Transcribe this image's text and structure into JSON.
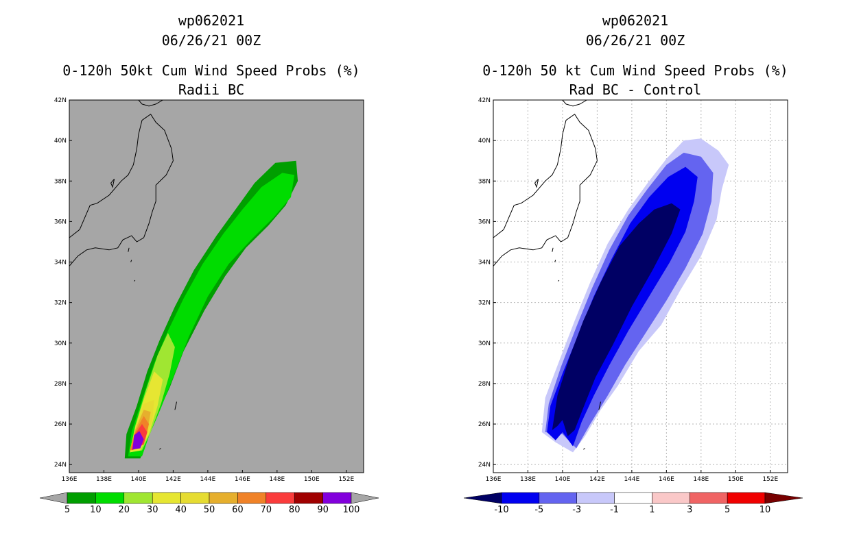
{
  "chart_data": [
    {
      "type": "contour-map",
      "title": "wp062021",
      "subtitle": "06/26/21 00Z",
      "variable": "0-120h 50kt Cum Wind Speed Probs (%)",
      "panel_label": "Radii BC",
      "background_color": "#a6a6a6",
      "lon_ticks": [
        "136E",
        "138E",
        "140E",
        "142E",
        "144E",
        "146E",
        "148E",
        "150E",
        "152E"
      ],
      "lat_ticks": [
        "42N",
        "40N",
        "38N",
        "36N",
        "34N",
        "32N",
        "30N",
        "28N",
        "26N",
        "24N"
      ],
      "lon_range": [
        136,
        153
      ],
      "lat_range": [
        23.6,
        42
      ],
      "levels": [
        "5",
        "10",
        "20",
        "30",
        "40",
        "50",
        "60",
        "70",
        "80",
        "90",
        "100"
      ],
      "level_colors": [
        "#009e00",
        "#00dc00",
        "#a0e632",
        "#e6e632",
        "#e6dc32",
        "#e6af2d",
        "#f08228",
        "#fa3c3c",
        "#a00000",
        "#8200dc"
      ],
      "contours": [
        {
          "level": 5,
          "color": "#009e00",
          "path": [
            [
              139.2,
              24.3
            ],
            [
              139.3,
              25.5
            ],
            [
              139.9,
              26.9
            ],
            [
              140.5,
              28.6
            ],
            [
              141.2,
              30.1
            ],
            [
              142.1,
              31.8
            ],
            [
              143.2,
              33.6
            ],
            [
              144.5,
              35.3
            ],
            [
              145.6,
              36.6
            ],
            [
              146.7,
              37.9
            ],
            [
              147.9,
              38.9
            ],
            [
              149.1,
              39.0
            ],
            [
              149.2,
              38.0
            ],
            [
              148.5,
              36.8
            ],
            [
              147.5,
              35.8
            ],
            [
              146.2,
              34.7
            ],
            [
              145.0,
              33.3
            ],
            [
              143.8,
              31.6
            ],
            [
              142.6,
              29.6
            ],
            [
              141.8,
              27.8
            ],
            [
              141.1,
              26.5
            ],
            [
              140.5,
              25.3
            ],
            [
              140.1,
              24.3
            ]
          ]
        },
        {
          "level": 10,
          "color": "#00dc00",
          "path": [
            [
              139.4,
              24.4
            ],
            [
              139.6,
              25.6
            ],
            [
              140.2,
              27.2
            ],
            [
              140.9,
              29.0
            ],
            [
              141.7,
              30.6
            ],
            [
              142.6,
              32.2
            ],
            [
              143.7,
              33.9
            ],
            [
              144.9,
              35.4
            ],
            [
              146.0,
              36.6
            ],
            [
              147.1,
              37.7
            ],
            [
              148.3,
              38.4
            ],
            [
              149.0,
              38.3
            ],
            [
              148.8,
              37.2
            ],
            [
              147.8,
              36.2
            ],
            [
              146.5,
              35.1
            ],
            [
              145.2,
              33.9
            ],
            [
              144.0,
              32.3
            ],
            [
              142.9,
              30.3
            ],
            [
              142.0,
              28.3
            ],
            [
              141.3,
              26.8
            ],
            [
              140.6,
              25.4
            ],
            [
              140.2,
              24.4
            ]
          ]
        },
        {
          "level": 20,
          "color": "#a0e632",
          "path": [
            [
              139.5,
              24.6
            ],
            [
              139.8,
              25.9
            ],
            [
              140.4,
              27.6
            ],
            [
              141.1,
              29.4
            ],
            [
              141.7,
              30.5
            ],
            [
              142.1,
              29.8
            ],
            [
              141.8,
              28.5
            ],
            [
              141.3,
              27.0
            ],
            [
              140.7,
              25.6
            ],
            [
              140.2,
              24.7
            ]
          ]
        },
        {
          "level": 30,
          "color": "#e6e632",
          "path": [
            [
              139.5,
              24.6
            ],
            [
              139.8,
              25.8
            ],
            [
              140.3,
              27.2
            ],
            [
              140.9,
              28.6
            ],
            [
              141.4,
              28.2
            ],
            [
              141.1,
              26.9
            ],
            [
              140.6,
              25.5
            ],
            [
              140.1,
              24.7
            ]
          ]
        },
        {
          "level": 40,
          "color": "#e6dc32",
          "path": [
            [
              139.5,
              24.7
            ],
            [
              139.8,
              25.8
            ],
            [
              140.3,
              27.0
            ],
            [
              140.9,
              27.2
            ],
            [
              140.8,
              26.2
            ],
            [
              140.4,
              25.3
            ],
            [
              140.0,
              24.8
            ]
          ]
        },
        {
          "level": 50,
          "color": "#e6af2d",
          "path": [
            [
              139.5,
              24.7
            ],
            [
              139.8,
              25.7
            ],
            [
              140.3,
              26.7
            ],
            [
              140.7,
              26.6
            ],
            [
              140.5,
              25.6
            ],
            [
              140.1,
              24.9
            ]
          ]
        },
        {
          "level": 60,
          "color": "#f08228",
          "path": [
            [
              139.5,
              24.7
            ],
            [
              139.8,
              25.6
            ],
            [
              140.3,
              26.4
            ],
            [
              140.6,
              26.0
            ],
            [
              140.4,
              25.3
            ],
            [
              140.0,
              24.8
            ]
          ]
        },
        {
          "level": 70,
          "color": "#fa3c3c",
          "path": [
            [
              139.6,
              24.7
            ],
            [
              139.8,
              25.5
            ],
            [
              140.2,
              26.0
            ],
            [
              140.5,
              25.6
            ],
            [
              140.3,
              25.0
            ],
            [
              139.9,
              24.8
            ]
          ]
        },
        {
          "level": 90,
          "color": "#8200dc",
          "path": [
            [
              139.65,
              24.75
            ],
            [
              139.75,
              25.45
            ],
            [
              140.05,
              25.65
            ],
            [
              140.3,
              25.25
            ],
            [
              140.1,
              24.8
            ]
          ]
        }
      ]
    },
    {
      "type": "contour-map",
      "title": "wp062021",
      "subtitle": "06/26/21 00Z",
      "variable": "0-120h 50 kt Cum Wind Speed Probs (%)",
      "panel_label": "Rad BC - Control",
      "background_color": "#ffffff",
      "lon_ticks": [
        "136E",
        "138E",
        "140E",
        "142E",
        "144E",
        "146E",
        "148E",
        "150E",
        "152E"
      ],
      "lat_ticks": [
        "42N",
        "40N",
        "38N",
        "36N",
        "34N",
        "32N",
        "30N",
        "28N",
        "26N",
        "24N"
      ],
      "lon_range": [
        136,
        153
      ],
      "lat_range": [
        23.6,
        42
      ],
      "levels": [
        "-10",
        "-5",
        "-3",
        "-1",
        "1",
        "3",
        "5",
        "10"
      ],
      "level_colors": [
        "#000064",
        "#0000f0",
        "#6464f0",
        "#c8c8fa",
        "#ffffff",
        "#fac8c8",
        "#f06464",
        "#f00000",
        "#780000"
      ],
      "contours": [
        {
          "level": -1,
          "color": "#c8c8fa",
          "path": [
            [
              138.8,
              25.6
            ],
            [
              139.0,
              27.3
            ],
            [
              139.8,
              29.1
            ],
            [
              140.7,
              31.1
            ],
            [
              141.6,
              33.0
            ],
            [
              142.6,
              34.9
            ],
            [
              143.8,
              36.6
            ],
            [
              145.0,
              38.0
            ],
            [
              146.0,
              39.1
            ],
            [
              147.0,
              40.0
            ],
            [
              148.0,
              40.1
            ],
            [
              149.0,
              39.5
            ],
            [
              149.6,
              38.8
            ],
            [
              149.2,
              37.6
            ],
            [
              148.9,
              36.1
            ],
            [
              148.0,
              34.3
            ],
            [
              146.8,
              32.6
            ],
            [
              145.7,
              30.9
            ],
            [
              144.4,
              29.6
            ],
            [
              143.2,
              27.9
            ],
            [
              142.2,
              26.7
            ],
            [
              141.3,
              25.4
            ],
            [
              140.6,
              24.6
            ],
            [
              139.6,
              25.1
            ]
          ]
        },
        {
          "level": -3,
          "color": "#6464f0",
          "path": [
            [
              139.0,
              25.6
            ],
            [
              139.2,
              27.0
            ],
            [
              139.9,
              28.8
            ],
            [
              140.8,
              30.8
            ],
            [
              141.7,
              32.7
            ],
            [
              142.7,
              34.6
            ],
            [
              143.8,
              36.3
            ],
            [
              144.9,
              37.6
            ],
            [
              146.0,
              38.8
            ],
            [
              147.0,
              39.4
            ],
            [
              148.0,
              39.2
            ],
            [
              148.7,
              38.4
            ],
            [
              148.6,
              37.0
            ],
            [
              148.1,
              35.4
            ],
            [
              147.1,
              33.7
            ],
            [
              146.0,
              32.1
            ],
            [
              144.8,
              30.5
            ],
            [
              143.6,
              28.9
            ],
            [
              142.6,
              27.4
            ],
            [
              141.6,
              26.0
            ],
            [
              140.8,
              24.8
            ],
            [
              140.0,
              25.5
            ]
          ]
        },
        {
          "level": -5,
          "color": "#0000f0",
          "path": [
            [
              139.1,
              25.6
            ],
            [
              139.3,
              26.9
            ],
            [
              140.0,
              28.5
            ],
            [
              140.9,
              30.4
            ],
            [
              141.8,
              32.3
            ],
            [
              142.8,
              34.1
            ],
            [
              143.9,
              35.9
            ],
            [
              145.0,
              37.2
            ],
            [
              146.1,
              38.2
            ],
            [
              147.1,
              38.7
            ],
            [
              147.8,
              38.2
            ],
            [
              147.6,
              37.0
            ],
            [
              147.1,
              35.5
            ],
            [
              146.2,
              34.0
            ],
            [
              145.0,
              32.3
            ],
            [
              143.8,
              30.6
            ],
            [
              142.7,
              28.9
            ],
            [
              141.8,
              27.4
            ],
            [
              141.1,
              26.1
            ],
            [
              140.6,
              24.9
            ],
            [
              140.0,
              25.6
            ],
            [
              139.6,
              25.2
            ]
          ]
        },
        {
          "level": -10,
          "color": "#000064",
          "path": [
            [
              139.4,
              25.7
            ],
            [
              139.7,
              27.4
            ],
            [
              140.4,
              29.3
            ],
            [
              141.2,
              31.1
            ],
            [
              142.2,
              33.0
            ],
            [
              143.3,
              34.8
            ],
            [
              144.4,
              35.9
            ],
            [
              145.3,
              36.6
            ],
            [
              146.3,
              36.9
            ],
            [
              146.8,
              36.6
            ],
            [
              146.3,
              35.4
            ],
            [
              145.2,
              33.6
            ],
            [
              144.0,
              31.8
            ],
            [
              142.9,
              29.9
            ],
            [
              141.9,
              28.3
            ],
            [
              141.2,
              26.8
            ],
            [
              140.7,
              25.7
            ],
            [
              140.3,
              25.4
            ],
            [
              140.0,
              26.2
            ],
            [
              139.7,
              25.9
            ]
          ]
        }
      ]
    }
  ],
  "colorbar_left": {
    "labels": [
      "5",
      "10",
      "20",
      "30",
      "40",
      "50",
      "60",
      "70",
      "80",
      "90",
      "100"
    ]
  },
  "colorbar_right": {
    "labels": [
      "-10",
      "-5",
      "-3",
      "-1",
      "1",
      "3",
      "5",
      "10"
    ]
  }
}
